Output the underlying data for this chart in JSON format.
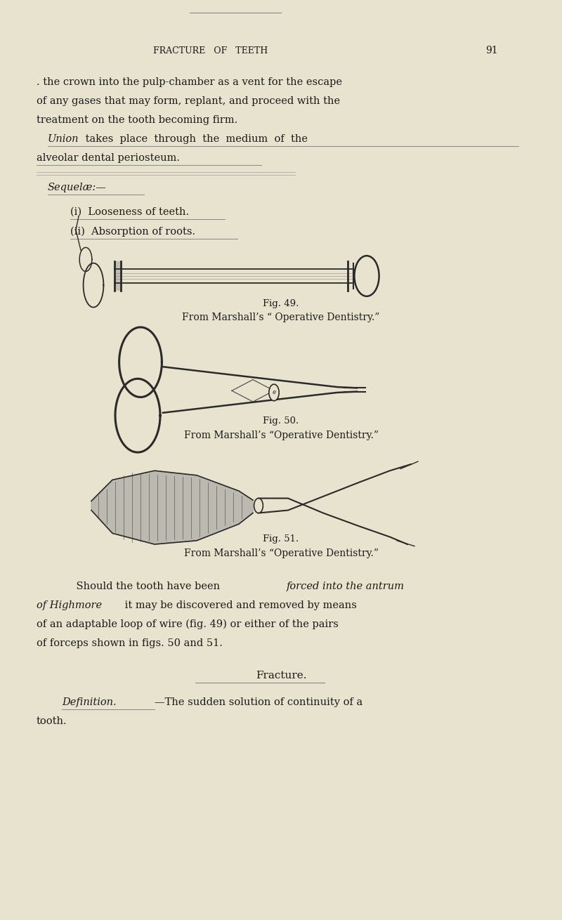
{
  "bg_color": "#e8e3ce",
  "text_color": "#1a1a1a",
  "page_width": 8.0,
  "page_height": 13.1,
  "header_text": "FRACTURE   OF   TEETH",
  "page_number": "91",
  "fig49_caption1": "Fig. 49.",
  "fig49_caption2": "From Marshall’s “ Operative Dentistry.”",
  "fig50_caption1": "Fig. 50.",
  "fig50_caption2": "From Marshall’s “Operative Dentistry.”",
  "fig51_caption1": "Fig. 51.",
  "fig51_caption2": "From Marshall’s “Operative Dentistry.”"
}
